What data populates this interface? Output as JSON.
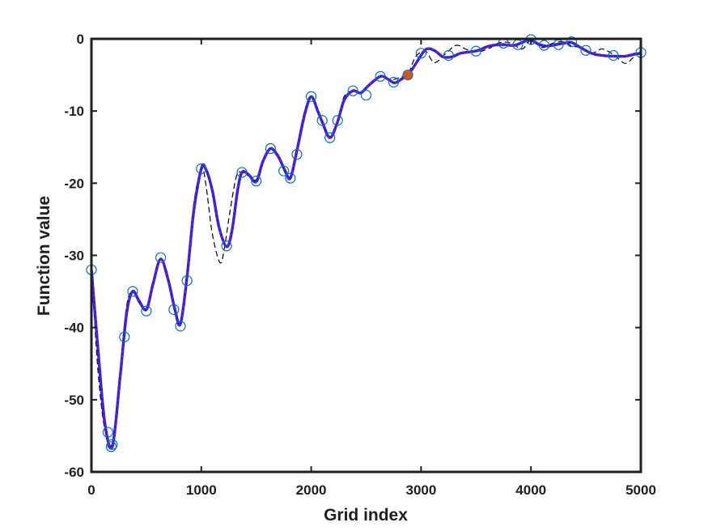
{
  "chart_data": {
    "type": "line",
    "title": "",
    "xlabel": "Grid index",
    "ylabel": "Function value",
    "xlim": [
      0,
      5000
    ],
    "ylim": [
      -60,
      0
    ],
    "x_ticks": [
      0,
      1000,
      2000,
      3000,
      4000,
      5000
    ],
    "x_tick_labels": [
      "0",
      "1000",
      "2000",
      "3000",
      "4000",
      "5000"
    ],
    "y_ticks": [
      0,
      -10,
      -20,
      -30,
      -40,
      -50,
      -60
    ],
    "y_tick_labels": [
      "0",
      "-10",
      "-20",
      "-30",
      "-40",
      "-50",
      "-60"
    ],
    "grid": false,
    "legend": "none",
    "colors": {
      "true_function": "#000000",
      "fit_outer": "#2020ff",
      "fit_inner": "#d01060",
      "samples": "#0072bd",
      "highlight": "#d95319"
    },
    "series": [
      {
        "role": "dashed-reference",
        "style": "dashed",
        "x": [
          0,
          60,
          120,
          190,
          260,
          320,
          375,
          430,
          500,
          560,
          630,
          700,
          760,
          810,
          870,
          930,
          1000,
          1040,
          1100,
          1170,
          1210,
          1260,
          1320,
          1370,
          1430,
          1500,
          1560,
          1630,
          1700,
          1760,
          1810,
          1870,
          1940,
          2000,
          2060,
          2100,
          2170,
          2240,
          2300,
          2380,
          2450,
          2520,
          2630,
          2690,
          2760,
          2830,
          2880,
          2950,
          3040,
          3120,
          3220,
          3320,
          3420,
          3520,
          3620,
          3720,
          3820,
          3920,
          4000,
          4100,
          4200,
          4300,
          4370,
          4450,
          4550,
          4650,
          4760,
          4860,
          4950,
          5000
        ],
        "y": [
          -32,
          -46,
          -54,
          -56,
          -46,
          -37,
          -35,
          -36.5,
          -37.5,
          -34,
          -30.5,
          -33,
          -38,
          -39.5,
          -33,
          -23,
          -18,
          -20,
          -27,
          -31,
          -29,
          -24,
          -19,
          -18.5,
          -19,
          -19.5,
          -17,
          -15.3,
          -16.5,
          -18.5,
          -19,
          -15,
          -10,
          -8,
          -10,
          -11.5,
          -13.5,
          -11.5,
          -8,
          -7.2,
          -7.5,
          -6.5,
          -5.2,
          -5.5,
          -5.6,
          -5.2,
          -5,
          -2.5,
          -1.7,
          -3.3,
          -2.1,
          -0.9,
          -1.5,
          -1.8,
          -1.3,
          -0.5,
          -0.6,
          -1.4,
          -0.2,
          -1.2,
          -0.6,
          -0.4,
          -1.0,
          -1.2,
          -2.0,
          -1.4,
          -2.3,
          -3.4,
          -2.3,
          -2.0
        ]
      },
      {
        "role": "fitted-curve",
        "style": "solid",
        "x": [
          0,
          60,
          120,
          190,
          260,
          320,
          375,
          430,
          500,
          560,
          630,
          700,
          760,
          810,
          870,
          930,
          1000,
          1040,
          1100,
          1160,
          1230,
          1280,
          1330,
          1370,
          1430,
          1500,
          1560,
          1630,
          1700,
          1760,
          1810,
          1870,
          1940,
          2000,
          2060,
          2100,
          2170,
          2240,
          2300,
          2380,
          2450,
          2520,
          2630,
          2700,
          2760,
          2830,
          2880,
          2950,
          3040,
          3120,
          3200,
          3280,
          3360,
          3450,
          3520,
          3620,
          3740,
          3850,
          3950,
          4000,
          4080,
          4150,
          4230,
          4300,
          4370,
          4450,
          4550,
          4650,
          4760,
          4860,
          4950,
          5000
        ],
        "y": [
          -32,
          -43,
          -53,
          -56.5,
          -47,
          -38,
          -35,
          -36.2,
          -37.5,
          -34,
          -30.5,
          -33.5,
          -37.5,
          -39.5,
          -33,
          -24,
          -18,
          -18,
          -21,
          -26,
          -28.8,
          -26.5,
          -21,
          -18.5,
          -18.8,
          -19.8,
          -17,
          -15.2,
          -16.3,
          -18.2,
          -19.3,
          -15.5,
          -10.5,
          -8,
          -10,
          -11.5,
          -13.7,
          -11.5,
          -8.5,
          -7.2,
          -7.5,
          -6.5,
          -5.2,
          -5.6,
          -6.1,
          -5.5,
          -5,
          -3.5,
          -1.5,
          -1.6,
          -2.5,
          -2.5,
          -2.0,
          -1.8,
          -1.6,
          -1.0,
          -0.8,
          -0.9,
          -0.3,
          -0.2,
          -0.8,
          -1.0,
          -0.8,
          -0.6,
          -0.5,
          -1.2,
          -2.0,
          -2.3,
          -2.4,
          -2.4,
          -2.1,
          -2.0
        ]
      }
    ],
    "samples": {
      "x": [
        0,
        150,
        180,
        190,
        300,
        375,
        500,
        630,
        750,
        810,
        870,
        1000,
        1230,
        1370,
        1500,
        1630,
        1750,
        1810,
        1870,
        2000,
        2100,
        2170,
        2240,
        2380,
        2500,
        2630,
        2750,
        2880,
        3000,
        3250,
        3500,
        3750,
        3880,
        4000,
        4120,
        4250,
        4370,
        4500,
        4750,
        5000
      ],
      "y": [
        -32,
        -54.5,
        -56.5,
        -56.2,
        -41.3,
        -35,
        -37.7,
        -30.3,
        -37.5,
        -39.8,
        -33.5,
        -18,
        -28.7,
        -18.5,
        -19.7,
        -15.2,
        -18.3,
        -19.3,
        -16,
        -8,
        -11.3,
        -13.7,
        -11.3,
        -7.2,
        -7.8,
        -5.2,
        -6,
        -5,
        -2,
        -2.3,
        -1.7,
        -0.6,
        -0.8,
        -0.1,
        -0.9,
        -0.8,
        -0.4,
        -1.6,
        -2.3,
        -1.9
      ]
    },
    "highlight_point": {
      "x": 2880,
      "y": -5
    }
  }
}
